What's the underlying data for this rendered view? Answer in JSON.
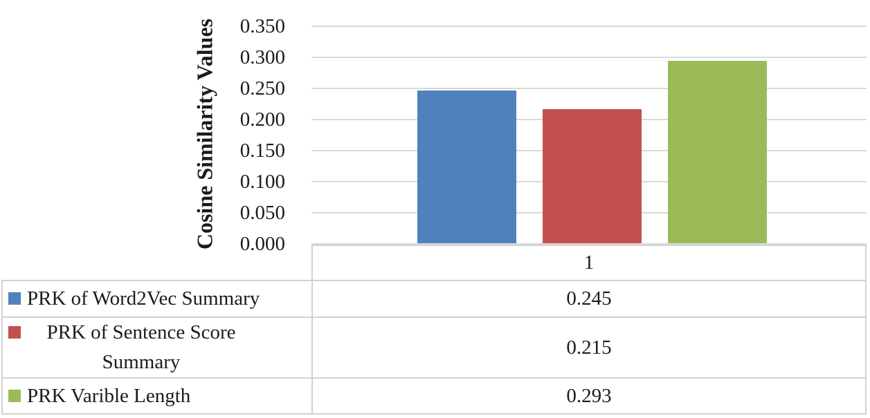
{
  "chart_data": {
    "type": "bar",
    "title": "",
    "xlabel": "",
    "ylabel": "Cosine Similarity Values",
    "categories": [
      "1"
    ],
    "series": [
      {
        "name": "PRK of Word2Vec Summary",
        "value": 0.245,
        "value_label": "0.245",
        "color": "#4F81BD"
      },
      {
        "name": "PRK of Sentence Score Summary",
        "value": 0.215,
        "value_label": "0.215",
        "color": "#C2514E"
      },
      {
        "name": "PRK Varible Length",
        "value": 0.293,
        "value_label": "0.293",
        "color": "#9BBB59"
      }
    ],
    "y_ticks": [
      {
        "value": 0.0,
        "label": "0.000"
      },
      {
        "value": 0.05,
        "label": "0.050"
      },
      {
        "value": 0.1,
        "label": "0.100"
      },
      {
        "value": 0.15,
        "label": "0.150"
      },
      {
        "value": 0.2,
        "label": "0.200"
      },
      {
        "value": 0.25,
        "label": "0.250"
      },
      {
        "value": 0.3,
        "label": "0.300"
      },
      {
        "value": 0.35,
        "label": "0.350"
      }
    ],
    "ylim": [
      0,
      0.35
    ],
    "grid": true,
    "legend_position": "left-column-of-data-table",
    "colors": {
      "gridline": "#D9D9D9",
      "table_border": "#D1D1D1",
      "text": "#1B1B1B"
    }
  }
}
